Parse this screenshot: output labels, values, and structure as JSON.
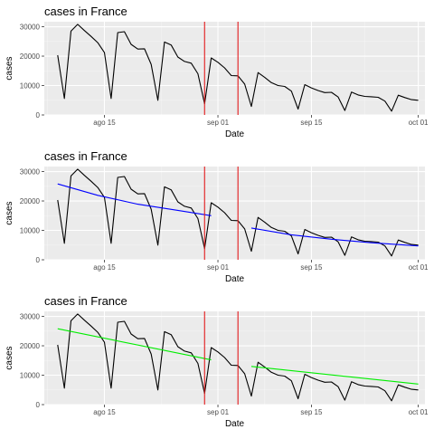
{
  "colors": {
    "panel_bg": "#ebebeb",
    "grid_major": "#ffffff",
    "grid_minor": "#f5f5f5",
    "data_line": "#000000",
    "vline": "#e31a1c",
    "axis_text": "#4d4d4d"
  },
  "chart_data": [
    {
      "type": "line",
      "title": "cases in France",
      "xlabel": "Date",
      "ylabel": "cases",
      "x_range": [
        "2020-08-06",
        "2020-10-02"
      ],
      "ylim": [
        0,
        31700
      ],
      "y_ticks": [
        0,
        10000,
        20000,
        30000
      ],
      "x_ticks": [
        {
          "date": "2020-08-15",
          "label": "ago 15"
        },
        {
          "date": "2020-09-01",
          "label": "sep 01"
        },
        {
          "date": "2020-09-15",
          "label": "sep 15"
        },
        {
          "date": "2020-10-01",
          "label": "oct 01"
        }
      ],
      "grid": true,
      "vlines": [
        "2020-08-30",
        "2020-09-04"
      ],
      "trend_lines": []
    },
    {
      "type": "line",
      "title": "cases in France",
      "xlabel": "Date",
      "ylabel": "cases",
      "x_range": [
        "2020-08-06",
        "2020-10-02"
      ],
      "ylim": [
        0,
        31700
      ],
      "y_ticks": [
        0,
        10000,
        20000,
        30000
      ],
      "x_ticks": [
        {
          "date": "2020-08-15",
          "label": "ago 15"
        },
        {
          "date": "2020-09-01",
          "label": "sep 01"
        },
        {
          "date": "2020-09-15",
          "label": "sep 15"
        },
        {
          "date": "2020-10-01",
          "label": "oct 01"
        }
      ],
      "grid": true,
      "vlines": [
        "2020-08-30",
        "2020-09-04"
      ],
      "trend_lines": [
        {
          "color": "#0000ff",
          "x": [
            "2020-08-08",
            "2020-08-14",
            "2020-08-20",
            "2020-08-26",
            "2020-08-31"
          ],
          "y": [
            25800,
            21900,
            18900,
            16800,
            15000
          ]
        },
        {
          "color": "#0000ff",
          "x": [
            "2020-09-06",
            "2020-09-12",
            "2020-09-18",
            "2020-09-24",
            "2020-10-01"
          ],
          "y": [
            10800,
            8500,
            7000,
            5800,
            4700
          ]
        }
      ]
    },
    {
      "type": "line",
      "title": "cases in France",
      "xlabel": "Date",
      "ylabel": "cases",
      "x_range": [
        "2020-08-06",
        "2020-10-02"
      ],
      "ylim": [
        0,
        31700
      ],
      "y_ticks": [
        0,
        10000,
        20000,
        30000
      ],
      "x_ticks": [
        {
          "date": "2020-08-15",
          "label": "ago 15"
        },
        {
          "date": "2020-09-01",
          "label": "sep 01"
        },
        {
          "date": "2020-09-15",
          "label": "sep 15"
        },
        {
          "date": "2020-10-01",
          "label": "oct 01"
        }
      ],
      "grid": true,
      "vlines": [
        "2020-08-30",
        "2020-09-04"
      ],
      "trend_lines": [
        {
          "color": "#00ee00",
          "x": [
            "2020-08-08",
            "2020-08-31"
          ],
          "y": [
            25800,
            15200
          ]
        },
        {
          "color": "#00ee00",
          "x": [
            "2020-09-06",
            "2020-10-01"
          ],
          "y": [
            13000,
            7000
          ]
        }
      ]
    }
  ],
  "series": {
    "name": "",
    "x": [
      "2020-08-08",
      "2020-08-09",
      "2020-08-10",
      "2020-08-11",
      "2020-08-12",
      "2020-08-13",
      "2020-08-14",
      "2020-08-15",
      "2020-08-16",
      "2020-08-17",
      "2020-08-18",
      "2020-08-19",
      "2020-08-20",
      "2020-08-21",
      "2020-08-22",
      "2020-08-23",
      "2020-08-24",
      "2020-08-25",
      "2020-08-26",
      "2020-08-27",
      "2020-08-28",
      "2020-08-29",
      "2020-08-30",
      "2020-08-31",
      "2020-09-01",
      "2020-09-02",
      "2020-09-03",
      "2020-09-04",
      "2020-09-05",
      "2020-09-06",
      "2020-09-07",
      "2020-09-08",
      "2020-09-09",
      "2020-09-10",
      "2020-09-11",
      "2020-09-12",
      "2020-09-13",
      "2020-09-14",
      "2020-09-15",
      "2020-09-16",
      "2020-09-17",
      "2020-09-18",
      "2020-09-19",
      "2020-09-20",
      "2020-09-21",
      "2020-09-22",
      "2020-09-23",
      "2020-09-24",
      "2020-09-25",
      "2020-09-26",
      "2020-09-27",
      "2020-09-28",
      "2020-09-29",
      "2020-09-30",
      "2020-10-01"
    ],
    "y": [
      20300,
      5600,
      28500,
      30800,
      28700,
      26700,
      24600,
      21200,
      5600,
      28000,
      28300,
      24000,
      22400,
      22500,
      17200,
      5000,
      24800,
      23800,
      19700,
      18200,
      17600,
      14000,
      3800,
      19400,
      17900,
      16000,
      13400,
      13300,
      10500,
      2900,
      14400,
      12800,
      11000,
      10000,
      9700,
      8100,
      2000,
      10300,
      9200,
      8300,
      7600,
      7700,
      6100,
      1500,
      7800,
      6800,
      6300,
      6200,
      6000,
      4700,
      1300,
      6700,
      5900,
      5200,
      5000
    ]
  }
}
